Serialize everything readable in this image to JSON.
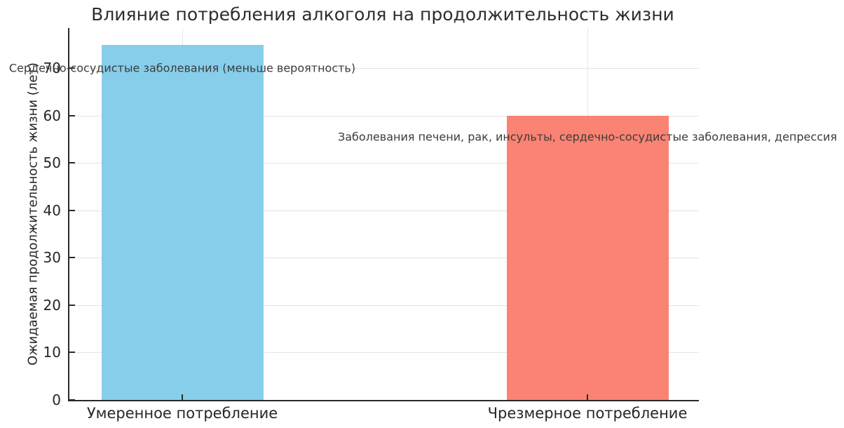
{
  "chart_data": {
    "type": "bar",
    "title": "Влияние потребления алкоголя на продолжительность жизни",
    "xlabel": "",
    "ylabel": "Ожидаемая продолжительность жизни (лет)",
    "categories": [
      "Умеренное потребление",
      "Чрезмерное потребление"
    ],
    "values": [
      75,
      60
    ],
    "bar_colors": [
      "#87CEEB",
      "#FA8373"
    ],
    "yticks": [
      0,
      10,
      20,
      30,
      40,
      50,
      60,
      70
    ],
    "ylim": [
      0,
      78.5
    ],
    "grid": true,
    "legend": false,
    "annotations": [
      {
        "text": "Сердечно-сосудистые заболевания (меньше вероятность)",
        "bar_index": 0,
        "y_value": 70
      },
      {
        "text": "Заболевания печени, рак, инсульты, сердечно-сосудистые заболевания, депрессия",
        "bar_index": 1,
        "y_value": 55.5
      }
    ]
  }
}
